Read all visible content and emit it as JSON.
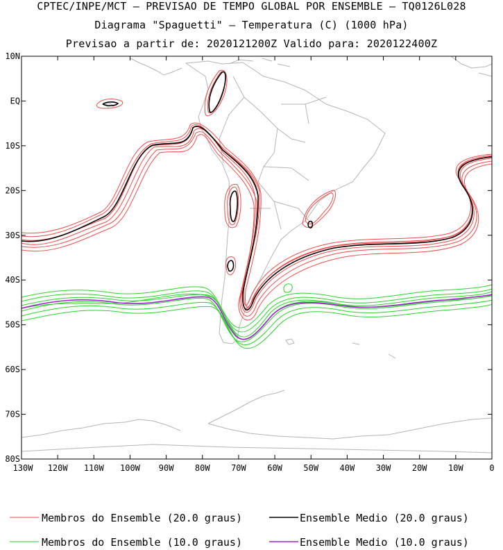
{
  "titles": {
    "line1": "CPTEC/INPE/MCT — PREVISAO DE TEMPO GLOBAL POR ENSEMBLE — TQ0126L028",
    "line2": "Diagrama \"Spaguetti\" — Temperatura (C) (1000 hPa)",
    "line3": "Previsao a partir de: 2020121200Z  Valido para: 2020122400Z"
  },
  "map": {
    "lon_range": [
      -130,
      0
    ],
    "lat_range": [
      -80,
      10
    ],
    "lat_labels": [
      "10N",
      "EQ",
      "10S",
      "20S",
      "30S",
      "40S",
      "50S",
      "60S",
      "70S",
      "80S"
    ],
    "lon_labels": [
      "130W",
      "120W",
      "110W",
      "100W",
      "90W",
      "80W",
      "70W",
      "60W",
      "50W",
      "40W",
      "30W",
      "20W",
      "10W",
      "0"
    ],
    "colors": {
      "coast": "#b4b4b4",
      "member20": "#f04848",
      "mean20": "#000000",
      "member10": "#28d228",
      "mean10": "#a020d0"
    }
  },
  "legend": {
    "items": [
      {
        "label": "Membros do Ensemble (20.0 graus)",
        "color": "#f04848"
      },
      {
        "label": "Ensemble Medio (20.0 graus)",
        "color": "#000000"
      },
      {
        "label": "Membros do Ensemble (10.0 graus)",
        "color": "#28d228"
      },
      {
        "label": "Ensemble Medio (10.0 graus)",
        "color": "#a020d0"
      }
    ]
  }
}
